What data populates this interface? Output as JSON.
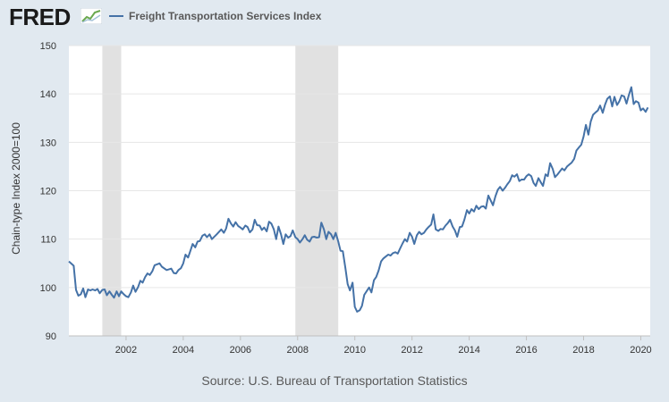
{
  "brand": {
    "logo_text": "FRED"
  },
  "colors": {
    "line": "#4572a7",
    "recession": "#e1e1e1",
    "grid": "#e6e6e6",
    "background": "#e1e9f0",
    "plot": "#ffffff"
  },
  "icons": {
    "logo": "trend-graph-icon"
  },
  "source": "Source: U.S. Bureau of Transportation Statistics",
  "chart_data": {
    "type": "line",
    "title": "",
    "ylabel": "Chain-type Index 2000=100",
    "xlabel": "",
    "xlim": [
      2000.0,
      2020.33
    ],
    "ylim": [
      90,
      150
    ],
    "yticks": [
      90,
      100,
      110,
      120,
      130,
      140,
      150
    ],
    "xticks": [
      2002,
      2004,
      2006,
      2008,
      2010,
      2012,
      2014,
      2016,
      2018,
      2020
    ],
    "grid": "horizontal",
    "legend_position": "top-left",
    "recessions": [
      [
        2001.17,
        2001.83
      ],
      [
        2007.92,
        2009.42
      ]
    ],
    "series": [
      {
        "name": "Freight Transportation Services Index",
        "points": [
          [
            2000.0,
            105.4
          ],
          [
            2000.17,
            104.5
          ],
          [
            2000.25,
            99.5
          ],
          [
            2000.33,
            98.3
          ],
          [
            2000.42,
            98.6
          ],
          [
            2000.5,
            99.8
          ],
          [
            2000.58,
            98.0
          ],
          [
            2000.67,
            99.6
          ],
          [
            2000.75,
            99.4
          ],
          [
            2000.83,
            99.6
          ],
          [
            2000.92,
            99.4
          ],
          [
            2001.0,
            99.7
          ],
          [
            2001.08,
            98.8
          ],
          [
            2001.17,
            99.5
          ],
          [
            2001.25,
            99.6
          ],
          [
            2001.33,
            98.4
          ],
          [
            2001.42,
            99.2
          ],
          [
            2001.5,
            98.5
          ],
          [
            2001.58,
            97.9
          ],
          [
            2001.67,
            99.2
          ],
          [
            2001.75,
            98.2
          ],
          [
            2001.83,
            99.2
          ],
          [
            2001.92,
            98.6
          ],
          [
            2002.0,
            98.2
          ],
          [
            2002.08,
            98.0
          ],
          [
            2002.17,
            99.0
          ],
          [
            2002.25,
            100.4
          ],
          [
            2002.33,
            99.1
          ],
          [
            2002.42,
            100.1
          ],
          [
            2002.5,
            101.4
          ],
          [
            2002.58,
            101.0
          ],
          [
            2002.67,
            102.2
          ],
          [
            2002.75,
            102.9
          ],
          [
            2002.83,
            102.6
          ],
          [
            2002.92,
            103.4
          ],
          [
            2003.0,
            104.6
          ],
          [
            2003.17,
            105.0
          ],
          [
            2003.25,
            104.3
          ],
          [
            2003.42,
            103.6
          ],
          [
            2003.58,
            103.9
          ],
          [
            2003.67,
            103.0
          ],
          [
            2003.75,
            102.9
          ],
          [
            2003.83,
            103.6
          ],
          [
            2003.92,
            104.0
          ],
          [
            2004.0,
            105.0
          ],
          [
            2004.08,
            106.8
          ],
          [
            2004.17,
            106.2
          ],
          [
            2004.25,
            107.6
          ],
          [
            2004.33,
            109.0
          ],
          [
            2004.42,
            108.3
          ],
          [
            2004.5,
            109.5
          ],
          [
            2004.58,
            109.6
          ],
          [
            2004.67,
            110.7
          ],
          [
            2004.75,
            111.0
          ],
          [
            2004.83,
            110.4
          ],
          [
            2004.92,
            111.0
          ],
          [
            2005.0,
            110.0
          ],
          [
            2005.17,
            111.0
          ],
          [
            2005.33,
            112.0
          ],
          [
            2005.42,
            111.3
          ],
          [
            2005.5,
            112.2
          ],
          [
            2005.58,
            114.2
          ],
          [
            2005.67,
            113.2
          ],
          [
            2005.75,
            112.6
          ],
          [
            2005.83,
            113.5
          ],
          [
            2005.92,
            112.7
          ],
          [
            2006.0,
            112.4
          ],
          [
            2006.08,
            112.0
          ],
          [
            2006.17,
            112.8
          ],
          [
            2006.25,
            112.5
          ],
          [
            2006.33,
            111.4
          ],
          [
            2006.42,
            112.0
          ],
          [
            2006.5,
            114.0
          ],
          [
            2006.58,
            112.9
          ],
          [
            2006.67,
            112.8
          ],
          [
            2006.75,
            111.9
          ],
          [
            2006.83,
            112.4
          ],
          [
            2006.92,
            111.6
          ],
          [
            2007.0,
            113.6
          ],
          [
            2007.08,
            113.2
          ],
          [
            2007.17,
            112.0
          ],
          [
            2007.25,
            110.0
          ],
          [
            2007.33,
            112.6
          ],
          [
            2007.42,
            111.0
          ],
          [
            2007.5,
            109.0
          ],
          [
            2007.58,
            111.0
          ],
          [
            2007.67,
            110.3
          ],
          [
            2007.75,
            110.6
          ],
          [
            2007.83,
            111.8
          ],
          [
            2007.92,
            110.4
          ],
          [
            2008.0,
            110.0
          ],
          [
            2008.08,
            109.3
          ],
          [
            2008.17,
            110.0
          ],
          [
            2008.25,
            110.8
          ],
          [
            2008.33,
            109.9
          ],
          [
            2008.42,
            109.5
          ],
          [
            2008.5,
            110.4
          ],
          [
            2008.58,
            110.5
          ],
          [
            2008.67,
            110.3
          ],
          [
            2008.75,
            110.4
          ],
          [
            2008.83,
            113.4
          ],
          [
            2008.92,
            112.0
          ],
          [
            2009.0,
            110.0
          ],
          [
            2009.08,
            111.5
          ],
          [
            2009.17,
            111.0
          ],
          [
            2009.25,
            110.0
          ],
          [
            2009.33,
            111.3
          ],
          [
            2009.42,
            109.5
          ],
          [
            2009.5,
            107.6
          ],
          [
            2009.58,
            107.5
          ],
          [
            2009.67,
            104.0
          ],
          [
            2009.75,
            100.7
          ],
          [
            2009.83,
            99.4
          ],
          [
            2009.92,
            101.0
          ],
          [
            2010.0,
            96.0
          ],
          [
            2010.08,
            95.0
          ],
          [
            2010.17,
            95.3
          ],
          [
            2010.25,
            96.2
          ],
          [
            2010.33,
            98.5
          ],
          [
            2010.42,
            99.3
          ],
          [
            2010.5,
            100.0
          ],
          [
            2010.58,
            99.0
          ],
          [
            2010.67,
            101.5
          ],
          [
            2010.75,
            102.2
          ],
          [
            2010.83,
            103.5
          ],
          [
            2010.92,
            105.4
          ],
          [
            2011.0,
            106.0
          ],
          [
            2011.08,
            106.4
          ],
          [
            2011.17,
            106.8
          ],
          [
            2011.25,
            106.6
          ],
          [
            2011.33,
            107.1
          ],
          [
            2011.42,
            107.3
          ],
          [
            2011.5,
            107.0
          ],
          [
            2011.58,
            108.0
          ],
          [
            2011.67,
            109.1
          ],
          [
            2011.75,
            110.0
          ],
          [
            2011.83,
            109.5
          ],
          [
            2011.92,
            111.3
          ],
          [
            2012.0,
            110.5
          ],
          [
            2012.08,
            109.0
          ],
          [
            2012.17,
            110.8
          ],
          [
            2012.25,
            111.5
          ],
          [
            2012.33,
            111.0
          ],
          [
            2012.42,
            111.3
          ],
          [
            2012.5,
            112.0
          ],
          [
            2012.58,
            112.5
          ],
          [
            2012.67,
            113.0
          ],
          [
            2012.75,
            115.1
          ],
          [
            2012.83,
            112.0
          ],
          [
            2012.92,
            111.7
          ],
          [
            2013.0,
            112.1
          ],
          [
            2013.08,
            112.0
          ],
          [
            2013.17,
            112.8
          ],
          [
            2013.25,
            113.3
          ],
          [
            2013.33,
            114.0
          ],
          [
            2013.42,
            112.6
          ],
          [
            2013.5,
            111.8
          ],
          [
            2013.58,
            110.5
          ],
          [
            2013.67,
            112.5
          ],
          [
            2013.75,
            112.6
          ],
          [
            2013.83,
            114.0
          ],
          [
            2013.92,
            116.0
          ],
          [
            2014.0,
            115.3
          ],
          [
            2014.08,
            116.2
          ],
          [
            2014.17,
            115.7
          ],
          [
            2014.25,
            116.9
          ],
          [
            2014.33,
            116.2
          ],
          [
            2014.42,
            116.7
          ],
          [
            2014.5,
            116.8
          ],
          [
            2014.58,
            116.3
          ],
          [
            2014.67,
            119.0
          ],
          [
            2014.75,
            118.0
          ],
          [
            2014.83,
            117.0
          ],
          [
            2014.92,
            118.9
          ],
          [
            2015.0,
            120.2
          ],
          [
            2015.08,
            120.8
          ],
          [
            2015.17,
            120.0
          ],
          [
            2015.25,
            120.6
          ],
          [
            2015.33,
            121.3
          ],
          [
            2015.42,
            122.0
          ],
          [
            2015.5,
            123.2
          ],
          [
            2015.58,
            122.9
          ],
          [
            2015.67,
            123.4
          ],
          [
            2015.75,
            122.0
          ],
          [
            2015.83,
            122.3
          ],
          [
            2015.92,
            122.3
          ],
          [
            2016.0,
            123.0
          ],
          [
            2016.08,
            123.4
          ],
          [
            2016.17,
            123.0
          ],
          [
            2016.25,
            121.6
          ],
          [
            2016.33,
            121.0
          ],
          [
            2016.42,
            122.6
          ],
          [
            2016.5,
            121.8
          ],
          [
            2016.58,
            121.0
          ],
          [
            2016.67,
            123.4
          ],
          [
            2016.75,
            123.0
          ],
          [
            2016.83,
            125.7
          ],
          [
            2016.92,
            124.5
          ],
          [
            2017.0,
            122.8
          ],
          [
            2017.08,
            123.3
          ],
          [
            2017.17,
            124.0
          ],
          [
            2017.25,
            124.6
          ],
          [
            2017.33,
            124.2
          ],
          [
            2017.42,
            125.0
          ],
          [
            2017.5,
            125.4
          ],
          [
            2017.58,
            125.8
          ],
          [
            2017.67,
            126.6
          ],
          [
            2017.75,
            128.3
          ],
          [
            2017.83,
            128.9
          ],
          [
            2017.92,
            129.5
          ],
          [
            2018.0,
            131.2
          ],
          [
            2018.08,
            133.6
          ],
          [
            2018.17,
            131.6
          ],
          [
            2018.25,
            134.3
          ],
          [
            2018.33,
            135.7
          ],
          [
            2018.42,
            136.2
          ],
          [
            2018.5,
            136.6
          ],
          [
            2018.58,
            137.6
          ],
          [
            2018.67,
            136.1
          ],
          [
            2018.75,
            137.8
          ],
          [
            2018.83,
            139.0
          ],
          [
            2018.92,
            139.5
          ],
          [
            2019.0,
            137.4
          ],
          [
            2019.08,
            139.4
          ],
          [
            2019.17,
            137.7
          ],
          [
            2019.25,
            138.5
          ],
          [
            2019.33,
            139.7
          ],
          [
            2019.42,
            139.5
          ],
          [
            2019.5,
            138.0
          ],
          [
            2019.58,
            139.7
          ],
          [
            2019.67,
            141.4
          ],
          [
            2019.75,
            137.9
          ],
          [
            2019.83,
            138.5
          ],
          [
            2019.92,
            138.2
          ],
          [
            2020.0,
            136.6
          ],
          [
            2020.08,
            137.0
          ],
          [
            2020.17,
            136.3
          ],
          [
            2020.25,
            137.2
          ]
        ]
      }
    ]
  }
}
